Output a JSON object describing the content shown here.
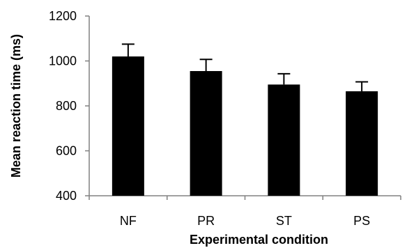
{
  "chart_data": {
    "type": "bar",
    "categories": [
      "NF",
      "PR",
      "ST",
      "PS"
    ],
    "values": [
      1020,
      955,
      895,
      865
    ],
    "error_bars": [
      55,
      52,
      48,
      42
    ],
    "xlabel": "Experimental condition",
    "ylabel": "Mean reaction time (ms)",
    "ylim": [
      400,
      1200
    ],
    "yticks": [
      400,
      600,
      800,
      1000,
      1200
    ],
    "grid": false,
    "legend": "none",
    "bar_color": "#000000"
  }
}
